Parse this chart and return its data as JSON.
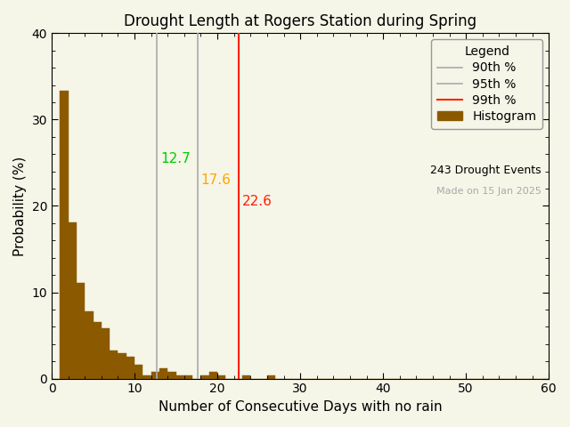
{
  "title": "Drought Length at Rogers Station during Spring",
  "xlabel": "Number of Consecutive Days with no rain",
  "ylabel": "Probability (%)",
  "xlim": [
    0,
    60
  ],
  "ylim": [
    0,
    40
  ],
  "xticks": [
    0,
    10,
    20,
    30,
    40,
    50,
    60
  ],
  "yticks": [
    0,
    10,
    20,
    30,
    40
  ],
  "bar_color": "#8B5A00",
  "bar_edgecolor": "#8B5A00",
  "background_color": "#f5f5e8",
  "percentile_90": 12.7,
  "percentile_95": 17.6,
  "percentile_99": 22.6,
  "p90_line_color": "#aaaaaa",
  "p95_line_color": "#aaaaaa",
  "p99_line_color": "#ff2200",
  "p90_text_color": "#00cc00",
  "p95_text_color": "#FFA500",
  "p99_text_color": "#ff2200",
  "n_events": 243,
  "made_on": "Made on 15 Jan 2025",
  "title_fontsize": 12,
  "label_fontsize": 11,
  "tick_fontsize": 10,
  "legend_fontsize": 10,
  "bin_probabilities": [
    0.0,
    33.3,
    18.1,
    11.1,
    7.8,
    6.6,
    5.8,
    3.3,
    2.9,
    2.5,
    1.6,
    0.4,
    0.8,
    1.2,
    0.8,
    0.4,
    0.4,
    0.0,
    0.4,
    0.8,
    0.4,
    0.0,
    0.0,
    0.4,
    0.0,
    0.0,
    0.4,
    0.0,
    0.0,
    0.0,
    0.0,
    0.0,
    0.0,
    0.0,
    0.0,
    0.0,
    0.0,
    0.0,
    0.0,
    0.0,
    0.0,
    0.0,
    0.0,
    0.0,
    0.0,
    0.0,
    0.0,
    0.0,
    0.0,
    0.0,
    0.0,
    0.0,
    0.0,
    0.0,
    0.0,
    0.0,
    0.0,
    0.0,
    0.0,
    0.0
  ]
}
